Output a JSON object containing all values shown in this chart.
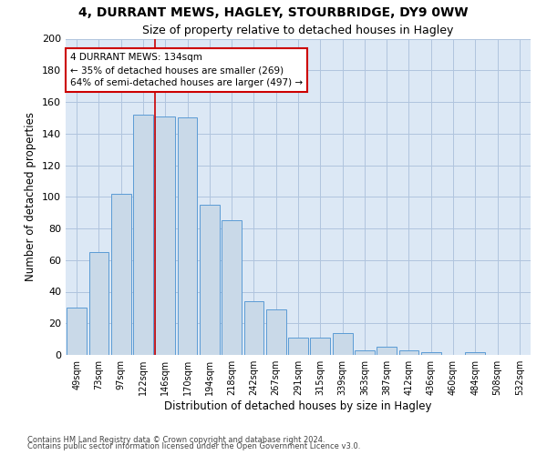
{
  "title1": "4, DURRANT MEWS, HAGLEY, STOURBRIDGE, DY9 0WW",
  "title2": "Size of property relative to detached houses in Hagley",
  "xlabel": "Distribution of detached houses by size in Hagley",
  "ylabel": "Number of detached properties",
  "categories": [
    "49sqm",
    "73sqm",
    "97sqm",
    "122sqm",
    "146sqm",
    "170sqm",
    "194sqm",
    "218sqm",
    "242sqm",
    "267sqm",
    "291sqm",
    "315sqm",
    "339sqm",
    "363sqm",
    "387sqm",
    "412sqm",
    "436sqm",
    "460sqm",
    "484sqm",
    "508sqm",
    "532sqm"
  ],
  "values": [
    30,
    65,
    102,
    152,
    151,
    150,
    95,
    85,
    34,
    29,
    11,
    11,
    14,
    3,
    5,
    3,
    2,
    0,
    2,
    0,
    0
  ],
  "bar_color": "#c9d9e8",
  "bar_edge_color": "#5b9bd5",
  "ref_line_label": "4 DURRANT MEWS: 134sqm",
  "annotation_line1": "← 35% of detached houses are smaller (269)",
  "annotation_line2": "64% of semi-detached houses are larger (497) →",
  "annotation_box_color": "#ffffff",
  "annotation_box_edge": "#cc0000",
  "ref_line_color": "#cc0000",
  "ylim": [
    0,
    200
  ],
  "yticks": [
    0,
    20,
    40,
    60,
    80,
    100,
    120,
    140,
    160,
    180,
    200
  ],
  "grid_color": "#b0c4de",
  "background_color": "#dce8f5",
  "footer1": "Contains HM Land Registry data © Crown copyright and database right 2024.",
  "footer2": "Contains public sector information licensed under the Open Government Licence v3.0."
}
